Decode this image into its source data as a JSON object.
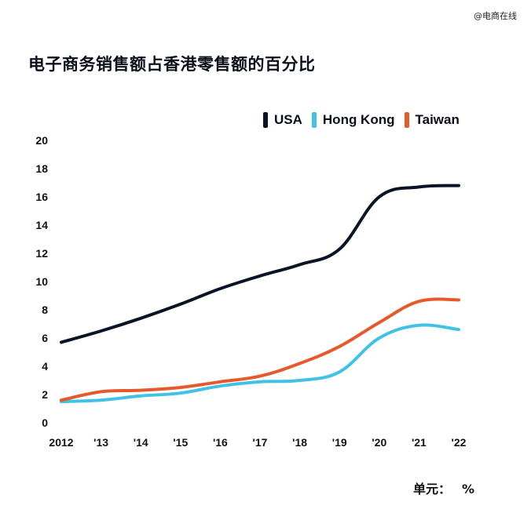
{
  "watermark": "@电商在线",
  "title": "电子商务销售额占香港零售额的百分比",
  "unit": {
    "label": "单元：",
    "symbol": "%"
  },
  "chart_data": {
    "type": "line",
    "title": "电子商务销售额占香港零售额的百分比",
    "xlabel": "",
    "ylabel": "",
    "x": [
      2012,
      2013,
      2014,
      2015,
      2016,
      2017,
      2018,
      2019,
      2020,
      2021,
      2022
    ],
    "x_tick_labels": [
      "2012",
      "'13",
      "'14",
      "'15",
      "'16",
      "'17",
      "'18",
      "'19",
      "'20",
      "'21",
      "'22"
    ],
    "y_ticks": [
      0,
      2,
      4,
      6,
      8,
      10,
      12,
      14,
      16,
      18,
      20
    ],
    "ylim": [
      0,
      20
    ],
    "xlim": [
      2012,
      2022
    ],
    "grid": false,
    "legend_position": "top-right",
    "series": [
      {
        "name": "USA",
        "color": "#0b1426",
        "values": [
          5.7,
          6.5,
          7.4,
          8.4,
          9.5,
          10.4,
          11.2,
          12.3,
          16.0,
          16.7,
          16.8
        ]
      },
      {
        "name": "Hong Kong",
        "color": "#3fc2e3",
        "values": [
          1.5,
          1.6,
          1.9,
          2.1,
          2.6,
          2.9,
          3.0,
          3.6,
          6.0,
          6.9,
          6.6
        ]
      },
      {
        "name": "Taiwan",
        "color": "#e5592a",
        "values": [
          1.6,
          2.2,
          2.3,
          2.5,
          2.9,
          3.3,
          4.2,
          5.4,
          7.1,
          8.6,
          8.7
        ]
      }
    ]
  }
}
